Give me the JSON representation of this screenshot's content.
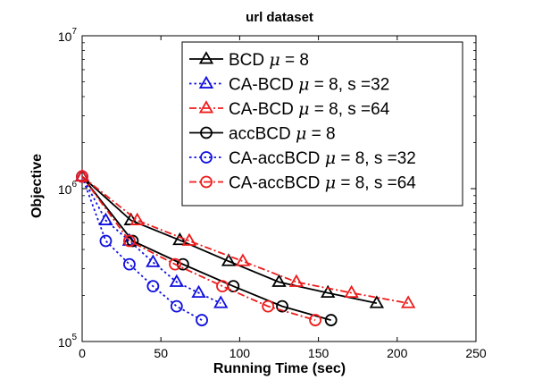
{
  "chart_data": {
    "type": "line",
    "title": "url dataset",
    "xlabel": "Running Time (sec)",
    "ylabel": "Objective",
    "xlim": [
      0,
      250
    ],
    "ylim": [
      100000,
      10000000
    ],
    "yscale": "log",
    "grid": false,
    "legend_position": "top-right",
    "xticks": [
      "0",
      "50",
      "100",
      "150",
      "200",
      "250"
    ],
    "yticks": [
      {
        "base": "10",
        "exp": "5",
        "value": 100000
      },
      {
        "base": "10",
        "exp": "6",
        "value": 1000000
      },
      {
        "base": "10",
        "exp": "7",
        "value": 10000000
      }
    ],
    "series": [
      {
        "name": "BCD μ = 8",
        "legend_parts": [
          "BCD ",
          "μ",
          " = 8"
        ],
        "color": "#000000",
        "dash": "solid",
        "marker": "triangle",
        "x": [
          0,
          31,
          62,
          93,
          125,
          156,
          187
        ],
        "y": [
          1200000,
          620000,
          460000,
          335000,
          245000,
          208000,
          178000
        ]
      },
      {
        "name": "CA-BCD μ = 8, s =32",
        "legend_parts": [
          "CA-BCD ",
          "μ",
          " = 8, s =32"
        ],
        "color": "#1010e0",
        "dash": "dotted",
        "marker": "triangle",
        "x": [
          0,
          15,
          30,
          45,
          60,
          74,
          88
        ],
        "y": [
          1200000,
          620000,
          455000,
          330000,
          245000,
          208000,
          178000
        ]
      },
      {
        "name": "CA-BCD μ = 8, s =64",
        "legend_parts": [
          "CA-BCD ",
          "μ",
          " = 8, s =64"
        ],
        "color": "#ee1c1c",
        "dash": "dashdot",
        "marker": "triangle",
        "x": [
          0,
          35,
          68,
          102,
          136,
          171,
          207
        ],
        "y": [
          1200000,
          620000,
          455000,
          335000,
          245000,
          208000,
          178000
        ]
      },
      {
        "name": "accBCD μ = 8",
        "legend_parts": [
          "accBCD ",
          "μ",
          " = 8"
        ],
        "color": "#000000",
        "dash": "solid",
        "marker": "circle",
        "x": [
          0,
          32,
          64,
          96,
          127,
          158
        ],
        "y": [
          1200000,
          455000,
          320000,
          230000,
          170000,
          138000
        ]
      },
      {
        "name": "CA-accBCD μ = 8, s =32",
        "legend_parts": [
          "CA-accBCD ",
          "μ",
          " = 8, s =32"
        ],
        "color": "#1010e0",
        "dash": "dotted",
        "marker": "circle",
        "x": [
          0,
          15,
          30,
          45,
          60,
          76
        ],
        "y": [
          1200000,
          455000,
          320000,
          230000,
          170000,
          138000
        ]
      },
      {
        "name": "CA-accBCD μ = 8, s =64",
        "legend_parts": [
          "CA-accBCD ",
          "μ",
          " = 8, s =64"
        ],
        "color": "#ee1c1c",
        "dash": "dashdot",
        "marker": "circle",
        "x": [
          0,
          30,
          59,
          89,
          118,
          148
        ],
        "y": [
          1200000,
          455000,
          320000,
          230000,
          170000,
          138000
        ]
      }
    ]
  }
}
